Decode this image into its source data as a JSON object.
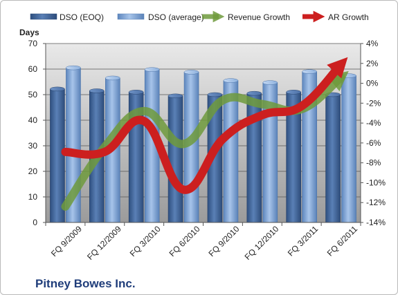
{
  "chart_data": {
    "type": "bar",
    "categories": [
      "FQ 9/2009",
      "FQ 12/2009",
      "FQ 3/2010",
      "FQ 6/2010",
      "FQ 9/2010",
      "FQ 12/2010",
      "FQ 3/2011",
      "FQ 6/2011"
    ],
    "series": [
      {
        "name": "DSO (EOQ)",
        "type": "bar",
        "axis": "left",
        "color": "#4a6fa5",
        "values": [
          52.2,
          51.5,
          51,
          49.5,
          50,
          50.5,
          51,
          50
        ]
      },
      {
        "name": "DSO (average)",
        "type": "bar",
        "axis": "left",
        "color": "#7fa6d6",
        "values": [
          60.5,
          56.5,
          59.8,
          58.8,
          55.5,
          54.7,
          59,
          57.4
        ]
      },
      {
        "name": "Revenue Growth",
        "type": "line",
        "axis": "right",
        "color": "#6e9a3c",
        "values": [
          -12.4,
          -6.4,
          -2.8,
          -6.1,
          -1.7,
          -2.1,
          -2.6,
          0.6
        ]
      },
      {
        "name": "AR Growth",
        "type": "line",
        "axis": "right",
        "color": "#cc1f1f",
        "values": [
          -6.9,
          -6.9,
          -3.8,
          -10.7,
          -5.6,
          -3.2,
          -2.3,
          1.9
        ]
      }
    ],
    "ylabel": "Days",
    "ylim": [
      0,
      70
    ],
    "yticks": [
      "0",
      "10",
      "20",
      "30",
      "40",
      "50",
      "60",
      "70"
    ],
    "y2lim": [
      -14,
      4
    ],
    "y2ticks": [
      "-14%",
      "-12%",
      "-10%",
      "-8%",
      "-6%",
      "-4%",
      "-2%",
      "0%",
      "2%",
      "4%"
    ],
    "grid": true,
    "legend_position": "top",
    "company": "Pitney Bowes Inc."
  }
}
